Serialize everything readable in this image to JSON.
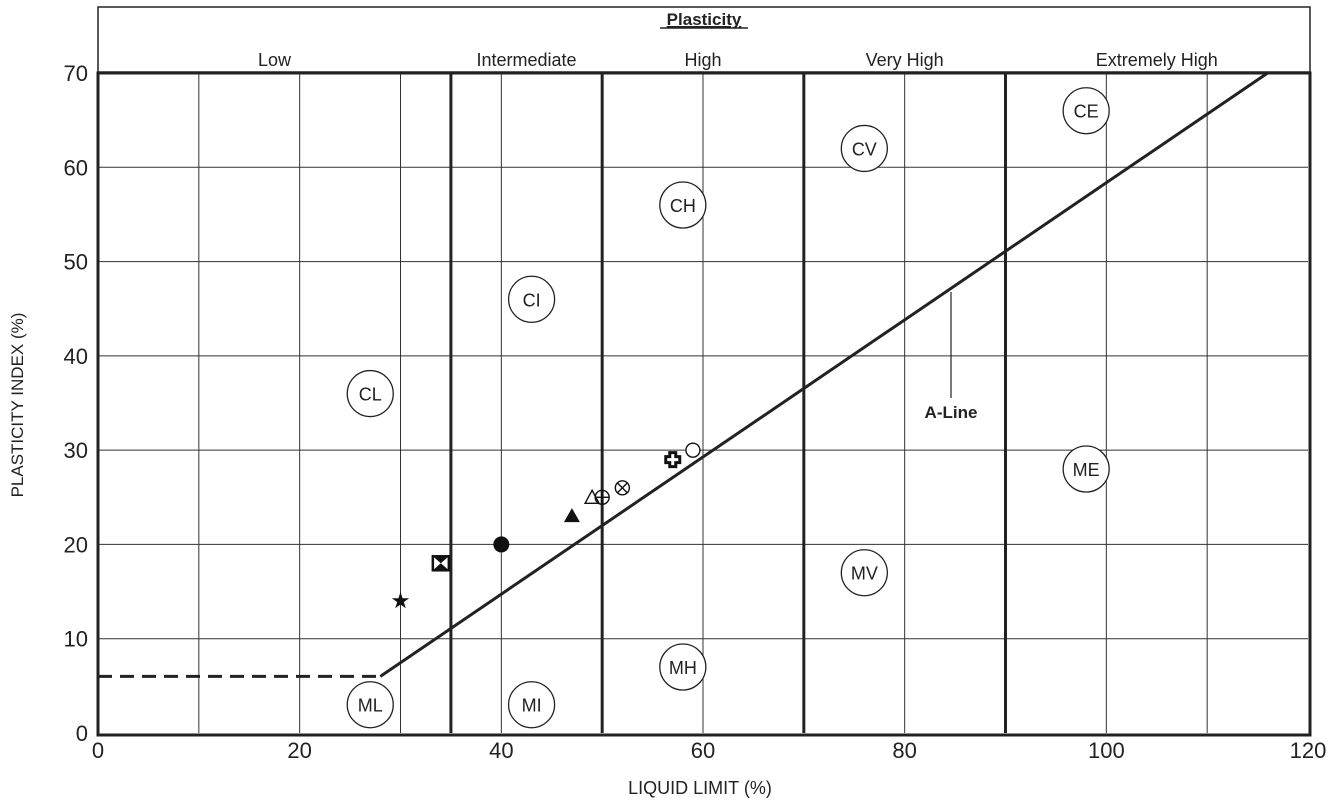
{
  "chart_data": {
    "type": "scatter",
    "title": "Plasticity",
    "xlabel": "LIQUID LIMIT (%)",
    "ylabel": "PLASTICITY INDEX (%)",
    "xlim": [
      0,
      120
    ],
    "ylim": [
      0,
      70
    ],
    "x_ticks": [
      "0",
      "20",
      "40",
      "60",
      "80",
      "100",
      "120"
    ],
    "y_ticks": [
      "0",
      "10",
      "20",
      "30",
      "40",
      "50",
      "60",
      "70"
    ],
    "x_tick_values": [
      0,
      20,
      40,
      60,
      80,
      100,
      120
    ],
    "y_tick_values": [
      0,
      10,
      20,
      30,
      40,
      50,
      60,
      70
    ],
    "grid": true,
    "grid_x_values": [
      10,
      20,
      30,
      40,
      50,
      60,
      70,
      80,
      90,
      100,
      110
    ],
    "grid_y_values": [
      10,
      20,
      30,
      40,
      50,
      60
    ],
    "plasticity_ranges": [
      {
        "label": "Low",
        "from": 0,
        "to": 35
      },
      {
        "label": "Intermediate",
        "from": 35,
        "to": 50
      },
      {
        "label": "High",
        "from": 50,
        "to": 70
      },
      {
        "label": "Very High",
        "from": 70,
        "to": 90
      },
      {
        "label": "Extremely High",
        "from": 90,
        "to": 120
      }
    ],
    "a_line": {
      "label": "A-Line",
      "solid": [
        [
          28,
          6
        ],
        [
          116,
          70
        ]
      ],
      "dashed": [
        [
          0,
          6
        ],
        [
          28,
          6
        ]
      ]
    },
    "zones": [
      {
        "label": "CL",
        "x": 27,
        "y": 36
      },
      {
        "label": "CI",
        "x": 43,
        "y": 46
      },
      {
        "label": "CH",
        "x": 58,
        "y": 56
      },
      {
        "label": "CV",
        "x": 76,
        "y": 62
      },
      {
        "label": "CE",
        "x": 98,
        "y": 66
      },
      {
        "label": "ML",
        "x": 27,
        "y": 3
      },
      {
        "label": "MI",
        "x": 43,
        "y": 3
      },
      {
        "label": "MH",
        "x": 58,
        "y": 7
      },
      {
        "label": "MV",
        "x": 76,
        "y": 17
      },
      {
        "label": "ME",
        "x": 98,
        "y": 28
      }
    ],
    "points": [
      {
        "x": 30,
        "y": 14,
        "marker": "star"
      },
      {
        "x": 34,
        "y": 18,
        "marker": "hourglass-square"
      },
      {
        "x": 40,
        "y": 20,
        "marker": "filled-circle"
      },
      {
        "x": 47,
        "y": 23,
        "marker": "filled-triangle"
      },
      {
        "x": 49,
        "y": 25,
        "marker": "open-triangle"
      },
      {
        "x": 50,
        "y": 25,
        "marker": "circle-plus"
      },
      {
        "x": 52,
        "y": 26,
        "marker": "circle-x"
      },
      {
        "x": 57,
        "y": 29,
        "marker": "bold-cross"
      },
      {
        "x": 59,
        "y": 30,
        "marker": "open-circle"
      }
    ]
  }
}
